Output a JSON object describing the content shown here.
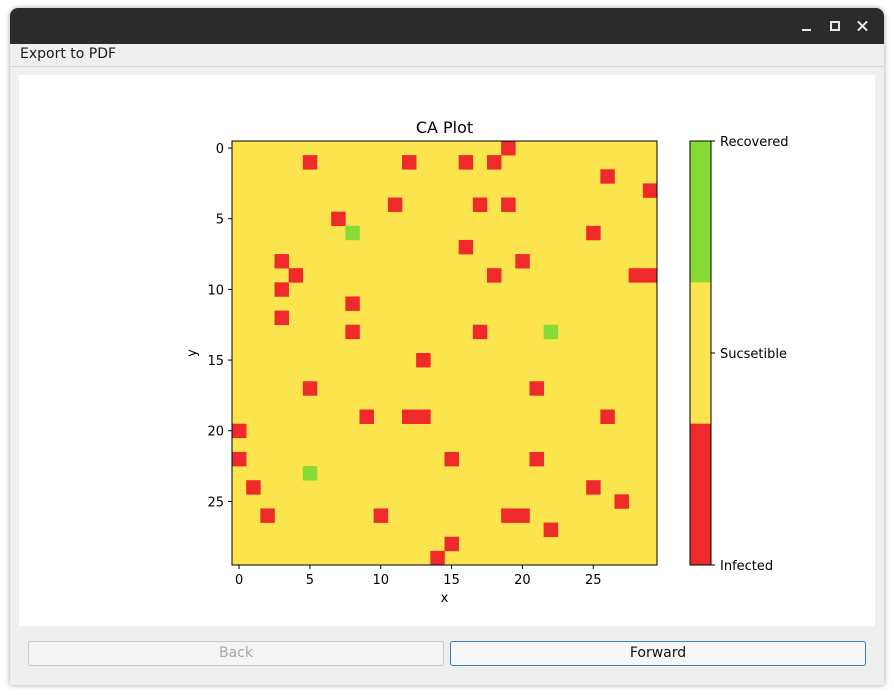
{
  "window": {
    "title": ""
  },
  "menu": {
    "items": [
      {
        "label": "Export to PDF"
      }
    ]
  },
  "buttons": {
    "back_label": "Back",
    "forward_label": "Forward",
    "back_enabled": false
  },
  "colors": {
    "infected": "#ee2a2a",
    "susceptible": "#fbe44d",
    "recovered": "#86dc35"
  },
  "chart_data": {
    "type": "heatmap",
    "title": "CA Plot",
    "xlabel": "x",
    "ylabel": "y",
    "grid_size": [
      30,
      30
    ],
    "x_ticks": [
      0,
      5,
      10,
      15,
      20,
      25
    ],
    "y_ticks": [
      0,
      5,
      10,
      15,
      20,
      25
    ],
    "y_axis_inverted": true,
    "default_state": "Sucsetible",
    "colorbar": {
      "labels": [
        "Recovered",
        "Sucsetible",
        "Infected"
      ],
      "placement": "right"
    },
    "infected_cells": [
      [
        19,
        0
      ],
      [
        5,
        1
      ],
      [
        12,
        1
      ],
      [
        16,
        1
      ],
      [
        18,
        1
      ],
      [
        26,
        2
      ],
      [
        29,
        3
      ],
      [
        11,
        4
      ],
      [
        17,
        4
      ],
      [
        19,
        4
      ],
      [
        7,
        5
      ],
      [
        25,
        6
      ],
      [
        16,
        7
      ],
      [
        3,
        8
      ],
      [
        20,
        8
      ],
      [
        4,
        9
      ],
      [
        18,
        9
      ],
      [
        28,
        9
      ],
      [
        29,
        9
      ],
      [
        3,
        10
      ],
      [
        8,
        11
      ],
      [
        3,
        12
      ],
      [
        8,
        13
      ],
      [
        17,
        13
      ],
      [
        13,
        15
      ],
      [
        5,
        17
      ],
      [
        21,
        17
      ],
      [
        9,
        19
      ],
      [
        12,
        19
      ],
      [
        13,
        19
      ],
      [
        26,
        19
      ],
      [
        0,
        20
      ],
      [
        0,
        22
      ],
      [
        15,
        22
      ],
      [
        21,
        22
      ],
      [
        1,
        24
      ],
      [
        25,
        24
      ],
      [
        27,
        25
      ],
      [
        2,
        26
      ],
      [
        10,
        26
      ],
      [
        19,
        26
      ],
      [
        20,
        26
      ],
      [
        22,
        27
      ],
      [
        15,
        28
      ],
      [
        14,
        29
      ]
    ],
    "recovered_cells": [
      [
        8,
        6
      ],
      [
        22,
        13
      ],
      [
        5,
        23
      ]
    ]
  }
}
